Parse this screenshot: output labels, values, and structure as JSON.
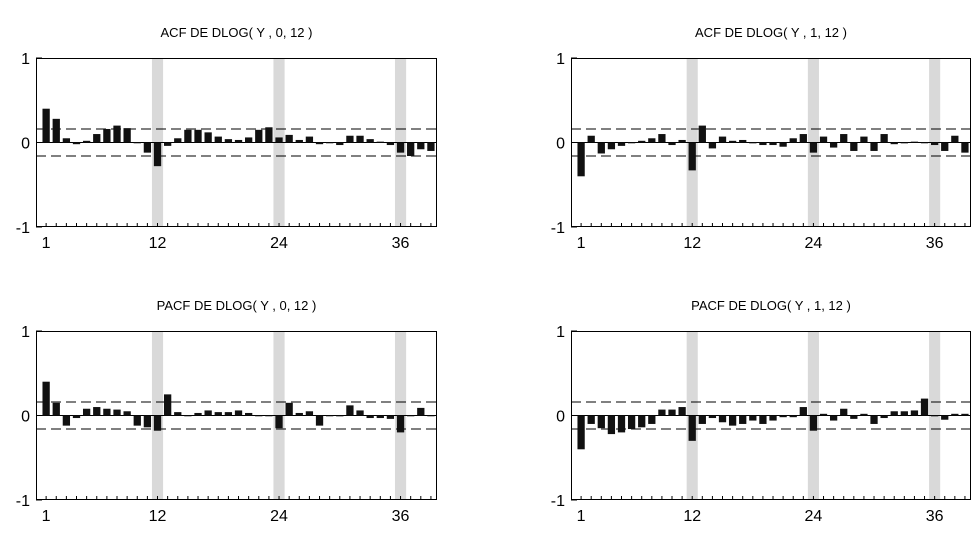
{
  "chart_data": [
    {
      "type": "bar",
      "title": "ACF  DE  DLOG( Y , 0, 12 )",
      "ylim": [
        -1,
        1
      ],
      "yticks": [
        "1",
        "0",
        "-1"
      ],
      "xticks": [
        "1",
        "12",
        "24",
        "36"
      ],
      "lags": [
        1,
        2,
        3,
        4,
        5,
        6,
        7,
        8,
        9,
        10,
        11,
        12,
        13,
        14,
        15,
        16,
        17,
        18,
        19,
        20,
        21,
        22,
        23,
        24,
        25,
        26,
        27,
        28,
        29,
        30,
        31,
        32,
        33,
        34,
        35,
        36,
        37,
        38,
        39
      ],
      "values": [
        0.4,
        0.28,
        0.05,
        -0.02,
        0.02,
        0.1,
        0.16,
        0.2,
        0.17,
        0.0,
        -0.12,
        -0.28,
        -0.04,
        0.05,
        0.15,
        0.15,
        0.12,
        0.07,
        0.04,
        0.03,
        0.06,
        0.15,
        0.18,
        0.06,
        0.09,
        0.03,
        0.07,
        -0.02,
        0.0,
        -0.03,
        0.08,
        0.08,
        0.04,
        0.01,
        -0.03,
        -0.12,
        -0.16,
        -0.08,
        -0.1
      ],
      "confidence_band": 0.16,
      "highlight_lags": [
        12,
        24,
        36
      ],
      "grid": false
    },
    {
      "type": "bar",
      "title": "ACF  DE  DLOG( Y , 1, 12 )",
      "ylim": [
        -1,
        1
      ],
      "yticks": [
        "1",
        "0",
        "-1"
      ],
      "xticks": [
        "1",
        "12",
        "24",
        "36"
      ],
      "lags": [
        1,
        2,
        3,
        4,
        5,
        6,
        7,
        8,
        9,
        10,
        11,
        12,
        13,
        14,
        15,
        16,
        17,
        18,
        19,
        20,
        21,
        22,
        23,
        24,
        25,
        26,
        27,
        28,
        29,
        30,
        31,
        32,
        33,
        34,
        35,
        36,
        37,
        38,
        39
      ],
      "values": [
        -0.4,
        0.08,
        -0.13,
        -0.08,
        -0.04,
        0.0,
        0.02,
        0.05,
        0.1,
        -0.03,
        0.03,
        -0.33,
        0.2,
        -0.07,
        0.07,
        0.02,
        0.03,
        -0.01,
        -0.03,
        -0.03,
        -0.05,
        0.05,
        0.1,
        -0.12,
        0.07,
        -0.06,
        0.1,
        -0.1,
        0.07,
        -0.1,
        0.1,
        -0.02,
        -0.01,
        0.01,
        0.0,
        -0.03,
        -0.1,
        0.08,
        -0.12
      ],
      "confidence_band": 0.16,
      "highlight_lags": [
        12,
        24,
        36
      ],
      "grid": false
    },
    {
      "type": "bar",
      "title": "PACF  DE  DLOG( Y , 0, 12 )",
      "ylim": [
        -1,
        1
      ],
      "yticks": [
        "1",
        "0",
        "-1"
      ],
      "xticks": [
        "1",
        "12",
        "24",
        "36"
      ],
      "lags": [
        1,
        2,
        3,
        4,
        5,
        6,
        7,
        8,
        9,
        10,
        11,
        12,
        13,
        14,
        15,
        16,
        17,
        18,
        19,
        20,
        21,
        22,
        23,
        24,
        25,
        26,
        27,
        28,
        29,
        30,
        31,
        32,
        33,
        34,
        35,
        36,
        37,
        38,
        39
      ],
      "values": [
        0.4,
        0.15,
        -0.12,
        -0.03,
        0.08,
        0.1,
        0.08,
        0.07,
        0.05,
        -0.12,
        -0.14,
        -0.18,
        0.25,
        0.04,
        0.0,
        0.03,
        0.06,
        0.04,
        0.04,
        0.06,
        0.03,
        0.0,
        0.0,
        -0.15,
        0.15,
        0.03,
        0.05,
        -0.12,
        0.0,
        -0.01,
        0.12,
        0.06,
        -0.03,
        -0.03,
        -0.04,
        -0.2,
        0.0,
        0.09,
        0.0
      ],
      "confidence_band": 0.16,
      "highlight_lags": [
        12,
        24,
        36
      ],
      "grid": false
    },
    {
      "type": "bar",
      "title": "PACF  DE  DLOG( Y , 1, 12 )",
      "ylim": [
        -1,
        1
      ],
      "yticks": [
        "1",
        "0",
        "-1"
      ],
      "xticks": [
        "1",
        "12",
        "24",
        "36"
      ],
      "lags": [
        1,
        2,
        3,
        4,
        5,
        6,
        7,
        8,
        9,
        10,
        11,
        12,
        13,
        14,
        15,
        16,
        17,
        18,
        19,
        20,
        21,
        22,
        23,
        24,
        25,
        26,
        27,
        28,
        29,
        30,
        31,
        32,
        33,
        34,
        35,
        36,
        37,
        38,
        39
      ],
      "values": [
        -0.4,
        -0.1,
        -0.15,
        -0.22,
        -0.2,
        -0.16,
        -0.14,
        -0.1,
        0.07,
        0.07,
        0.1,
        -0.3,
        -0.1,
        -0.03,
        -0.08,
        -0.12,
        -0.1,
        -0.06,
        -0.1,
        -0.06,
        -0.02,
        -0.02,
        0.1,
        -0.18,
        0.02,
        -0.06,
        0.08,
        -0.04,
        0.02,
        -0.1,
        -0.03,
        0.05,
        0.05,
        0.06,
        0.2,
        -0.01,
        -0.05,
        0.02,
        0.02
      ],
      "confidence_band": 0.16,
      "highlight_lags": [
        12,
        24,
        36
      ],
      "grid": false
    }
  ]
}
